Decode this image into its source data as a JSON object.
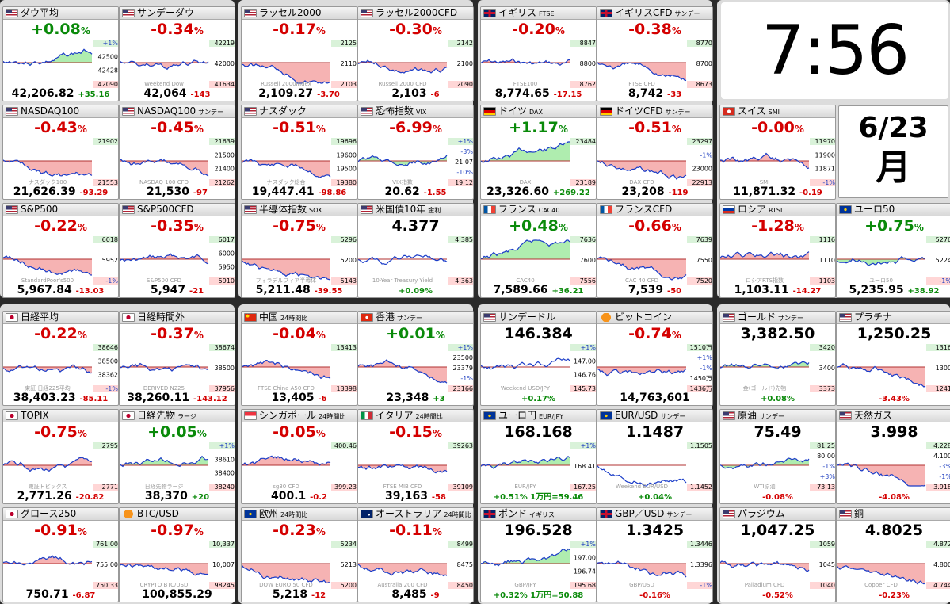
{
  "clock": {
    "time": "7:56"
  },
  "date": {
    "md": "6/23",
    "wd": "月"
  },
  "colors": {
    "up": "#0a8a0a",
    "down": "#d40000",
    "area_up": "#9be89b",
    "area_down": "#f4a0a0",
    "highlight": "#fff7a8"
  },
  "tiles": [
    {
      "name": "ダウ平均",
      "sub": "",
      "flag": "us",
      "chg": "+0.08",
      "unit": "%",
      "price": "42,206.82",
      "diff": "+35.16",
      "trend": "up",
      "badges": [
        "+1%",
        "42500",
        "42428",
        "42090"
      ],
      "wm": ""
    },
    {
      "name": "サンデーダウ",
      "sub": "",
      "flag": "us",
      "chg": "-0.34",
      "unit": "%",
      "price": "42,064",
      "diff": "-143",
      "trend": "down",
      "badges": [
        "42219",
        "42000",
        "41634"
      ],
      "wm": "Weekend Dow"
    },
    {
      "name": "ラッセル2000",
      "sub": "",
      "flag": "us",
      "chg": "-0.17",
      "unit": "%",
      "price": "2,109.27",
      "diff": "-3.70",
      "trend": "down",
      "badges": [
        "2125",
        "2110",
        "2103"
      ],
      "wm": "Russell 2000Index"
    },
    {
      "name": "ラッセル2000CFD",
      "sub": "",
      "flag": "us",
      "chg": "-0.30",
      "unit": "%",
      "price": "2,103",
      "diff": "-6",
      "trend": "down",
      "badges": [
        "2142",
        "2100",
        "2090"
      ],
      "wm": "Russell 2000 CFD"
    },
    {
      "name": "イギリス",
      "sub": "FTSE",
      "flag": "uk",
      "chg": "-0.20",
      "unit": "%",
      "price": "8,774.65",
      "diff": "-17.15",
      "trend": "down",
      "badges": [
        "8847",
        "8800",
        "8762"
      ],
      "wm": "FTSE100"
    },
    {
      "name": "イギリスCFD",
      "sub": "サンデー",
      "flag": "uk",
      "chg": "-0.38",
      "unit": "%",
      "price": "8,742",
      "diff": "-33",
      "trend": "down",
      "badges": [
        "8770",
        "8700",
        "8673"
      ],
      "wm": "FTSE CFD"
    },
    {
      "name": "NASDAQ100",
      "sub": "",
      "flag": "us",
      "chg": "-0.43",
      "unit": "%",
      "price": "21,626.39",
      "diff": "-93.29",
      "trend": "down",
      "badges": [
        "21902",
        "21553"
      ],
      "wm": "ナスダック100"
    },
    {
      "name": "NASDAQ100",
      "sub": "サンデー",
      "flag": "us",
      "chg": "-0.45",
      "unit": "%",
      "price": "21,530",
      "diff": "-97",
      "trend": "down",
      "badges": [
        "21639",
        "21500",
        "21400",
        "21262"
      ],
      "wm": "NASDAQ 100 CFD"
    },
    {
      "name": "ナスダック",
      "sub": "",
      "flag": "us",
      "chg": "-0.51",
      "unit": "%",
      "price": "19,447.41",
      "diff": "-98.86",
      "trend": "down",
      "badges": [
        "19696",
        "19600",
        "19500",
        "19380"
      ],
      "wm": "ナスダック総合"
    },
    {
      "name": "恐怖指数",
      "sub": "VIX",
      "flag": "us",
      "chg": "-6.99",
      "unit": "%",
      "price": "20.62",
      "diff": "-1.55",
      "trend": "up",
      "badges": [
        "+1%",
        "-3%",
        "21.07",
        "-10%",
        "19.12"
      ],
      "wm": "VIX指数"
    },
    {
      "name": "ドイツ",
      "sub": "DAX",
      "flag": "de",
      "chg": "+1.17",
      "unit": "%",
      "price": "23,326.60",
      "diff": "+269.22",
      "trend": "up",
      "badges": [
        "23484",
        "23189"
      ],
      "wm": "DAX"
    },
    {
      "name": "ドイツCFD",
      "sub": "サンデー",
      "flag": "de",
      "chg": "-0.51",
      "unit": "%",
      "price": "23,208",
      "diff": "-119",
      "trend": "down",
      "badges": [
        "23297",
        "-1%",
        "23000",
        "22913"
      ],
      "wm": "DAX CFD"
    },
    {
      "name": "スイス",
      "sub": "SMI",
      "flag": "ch",
      "chg": "-0.00",
      "unit": "%",
      "price": "11,871.32",
      "diff": "-0.19",
      "trend": "down",
      "badges": [
        "11970",
        "11900",
        "11871",
        "-1%"
      ],
      "wm": "SMI"
    },
    {
      "name": "S&P500",
      "sub": "",
      "flag": "us",
      "chg": "-0.22",
      "unit": "%",
      "price": "5,967.84",
      "diff": "-13.03",
      "trend": "down",
      "badges": [
        "6018",
        "5952",
        "-1%"
      ],
      "wm": "StandardPoor's500"
    },
    {
      "name": "S&P500CFD",
      "sub": "",
      "flag": "us",
      "chg": "-0.35",
      "unit": "%",
      "price": "5,947",
      "diff": "-21",
      "trend": "down",
      "badges": [
        "6017",
        "6000",
        "5950",
        "5910"
      ],
      "wm": "S&P500 CFD"
    },
    {
      "name": "半導体指数",
      "sub": "SOX",
      "flag": "us",
      "chg": "-0.75",
      "unit": "%",
      "price": "5,211.48",
      "diff": "-39.55",
      "trend": "down",
      "badges": [
        "5296",
        "5200",
        "5143"
      ],
      "wm": "フィラデルフィア半導体"
    },
    {
      "name": "米国債10年",
      "sub": "金利",
      "flag": "us",
      "chg": "4.377",
      "unit": "",
      "price": "",
      "diff": "+0.09%",
      "trend": "flat",
      "badges": [
        "4.385",
        "4.363"
      ],
      "wm": "10-Year Treasury Yield"
    },
    {
      "name": "フランス",
      "sub": "CAC40",
      "flag": "fr",
      "chg": "+0.48",
      "unit": "%",
      "price": "7,589.66",
      "diff": "+36.21",
      "trend": "up",
      "badges": [
        "7636",
        "7600",
        "7556"
      ],
      "wm": "CAC40"
    },
    {
      "name": "フランスCFD",
      "sub": "",
      "flag": "fr",
      "chg": "-0.66",
      "unit": "%",
      "price": "7,539",
      "diff": "-50",
      "trend": "down",
      "badges": [
        "7639",
        "7550",
        "7520"
      ],
      "wm": "CAC 40 CFD"
    },
    {
      "name": "ロシア",
      "sub": "RTSI",
      "flag": "ru",
      "chg": "-1.28",
      "unit": "%",
      "price": "1,103.11",
      "diff": "-14.27",
      "trend": "down",
      "badges": [
        "1116",
        "1110",
        "1103"
      ],
      "wm": "ロシアRTS指数"
    },
    {
      "name": "ユーロ50",
      "sub": "",
      "flag": "eu",
      "chg": "+0.75",
      "unit": "%",
      "price": "5,235.95",
      "diff": "+38.92",
      "trend": "up",
      "badges": [
        "5276",
        "5224",
        "-1%"
      ],
      "wm": "ユーロ50"
    },
    {
      "name": "日経平均",
      "sub": "",
      "flag": "jp",
      "chg": "-0.22",
      "unit": "%",
      "price": "38,403.23",
      "diff": "-85.11",
      "trend": "down",
      "badges": [
        "38646",
        "38500",
        "38362",
        "-1%"
      ],
      "wm": "東証 日経225平均"
    },
    {
      "name": "日経時間外",
      "sub": "",
      "flag": "jp",
      "chg": "-0.37",
      "unit": "%",
      "price": "38,260.11",
      "diff": "-143.12",
      "trend": "down",
      "badges": [
        "38674",
        "38500",
        "37956"
      ],
      "wm": "DERIVED N225"
    },
    {
      "name": "中国",
      "sub": "24時間比",
      "flag": "cn",
      "chg": "-0.04",
      "unit": "%",
      "price": "13,405",
      "diff": "-6",
      "trend": "down",
      "badges": [
        "13413",
        "13398"
      ],
      "wm": "FTSE China A50 CFD"
    },
    {
      "name": "香港",
      "sub": "サンデー",
      "flag": "hk",
      "chg": "+0.01",
      "unit": "%",
      "price": "23,348",
      "diff": "+3",
      "trend": "down",
      "badges": [
        "+1%",
        "23500",
        "23379",
        "-1%",
        "23166"
      ],
      "wm": ""
    },
    {
      "name": "サンデードル",
      "sub": "",
      "flag": "us",
      "chg": "146.384",
      "unit": "",
      "price": "",
      "diff": "+0.17%",
      "trend": "flat",
      "badges": [
        "+1%",
        "147.00",
        "146.76",
        "145.73"
      ],
      "wm": "Weekend USD/JPY"
    },
    {
      "name": "ビットコイン",
      "sub": "",
      "flag": "btc",
      "chg": "-0.74",
      "unit": "%",
      "price": "14,763,601",
      "diff": "",
      "trend": "down",
      "badges": [
        "1510万",
        "+1%",
        "-1%",
        "1450万",
        "1436万"
      ],
      "wm": ""
    },
    {
      "name": "ゴールド",
      "sub": "サンデー",
      "flag": "us",
      "chg": "3,382.50",
      "unit": "",
      "price": "",
      "diff": "+0.08%",
      "trend": "up",
      "badges": [
        "3420",
        "3400",
        "3373"
      ],
      "wm": "金(ゴールド)先物"
    },
    {
      "name": "プラチナ",
      "sub": "",
      "flag": "us",
      "chg": "1,250.25",
      "unit": "",
      "price": "",
      "diff": "-3.43%",
      "trend": "down",
      "badges": [
        "1316",
        "1300",
        "1241"
      ],
      "wm": ""
    },
    {
      "name": "TOPIX",
      "sub": "",
      "flag": "jp",
      "chg": "-0.75",
      "unit": "%",
      "price": "2,771.26",
      "diff": "-20.82",
      "trend": "down",
      "badges": [
        "2795",
        "2771"
      ],
      "wm": "東証トピックス"
    },
    {
      "name": "日経先物",
      "sub": "ラージ",
      "flag": "jp",
      "chg": "+0.05",
      "unit": "%",
      "price": "38,370",
      "diff": "+20",
      "trend": "up",
      "badges": [
        "+1%",
        "38610",
        "38400",
        "38240"
      ],
      "wm": "日経先物ラージ"
    },
    {
      "name": "シンガポール",
      "sub": "24時間比",
      "flag": "sg",
      "chg": "-0.05",
      "unit": "%",
      "price": "400.1",
      "diff": "-0.2",
      "trend": "down",
      "badges": [
        "400.46",
        "399.23"
      ],
      "wm": "sg30 CFD"
    },
    {
      "name": "イタリア",
      "sub": "24時間比",
      "flag": "it",
      "chg": "-0.15",
      "unit": "%",
      "price": "39,163",
      "diff": "-58",
      "trend": "down",
      "badges": [
        "39263",
        "39109"
      ],
      "wm": "FTSE MIB CFD"
    },
    {
      "name": "ユーロ円",
      "sub": "EUR/JPY",
      "flag": "eu",
      "chg": "168.168",
      "unit": "",
      "price": "",
      "diff": "+0.51% 1万円=59.46",
      "trend": "up",
      "badges": [
        "+1%",
        "168.41",
        "167.25"
      ],
      "wm": "EUR/JPY"
    },
    {
      "name": "EUR/USD",
      "sub": "サンデー",
      "flag": "eu",
      "chg": "1.1487",
      "unit": "",
      "price": "",
      "diff": "+0.04%",
      "trend": "flat",
      "badges": [
        "1.1505",
        "1.1452"
      ],
      "wm": "Weekend EUR/USD"
    },
    {
      "name": "原油",
      "sub": "サンデー",
      "flag": "us",
      "chg": "75.49",
      "unit": "",
      "price": "",
      "diff": "-0.08%",
      "trend": "up",
      "badges": [
        "81.25",
        "80.00",
        "-1%",
        "+3%",
        "73.13"
      ],
      "wm": "WTI原油"
    },
    {
      "name": "天然ガス",
      "sub": "",
      "flag": "us",
      "chg": "3.998",
      "unit": "",
      "price": "",
      "diff": "-4.08%",
      "trend": "down",
      "badges": [
        "4.228",
        "4.100",
        "-3%",
        "-1%",
        "3.918"
      ],
      "wm": ""
    },
    {
      "name": "グロース250",
      "sub": "",
      "flag": "jp",
      "chg": "-0.91",
      "unit": "%",
      "price": "750.71",
      "diff": "-6.87",
      "trend": "down",
      "badges": [
        "761.00",
        "755.00",
        "750.33"
      ],
      "wm": ""
    },
    {
      "name": "BTC/USD",
      "sub": "",
      "flag": "btc",
      "chg": "-0.97",
      "unit": "%",
      "price": "100,855.29",
      "diff": "",
      "trend": "down",
      "badges": [
        "10,337",
        "10,007",
        "98245"
      ],
      "wm": "CRYPTO BTC/USD"
    },
    {
      "name": "欧州",
      "sub": "24時間比",
      "flag": "eu",
      "chg": "-0.23",
      "unit": "%",
      "price": "5,218",
      "diff": "-12",
      "trend": "down",
      "badges": [
        "5234",
        "5213",
        "5200"
      ],
      "wm": "DOW EURO 50 CFD"
    },
    {
      "name": "オーストラリア",
      "sub": "24時間比",
      "flag": "au",
      "chg": "-0.11",
      "unit": "%",
      "price": "8,485",
      "diff": "-9",
      "trend": "down",
      "badges": [
        "8499",
        "8475",
        "8450"
      ],
      "wm": "Australia 200 CFD"
    },
    {
      "name": "ポンド",
      "sub": "イギリス",
      "flag": "uk",
      "chg": "196.528",
      "unit": "",
      "price": "",
      "diff": "+0.32% 1万円=50.88",
      "trend": "up",
      "badges": [
        "+1%",
        "197.00",
        "196.74",
        "195.68"
      ],
      "wm": "GBP/JPY"
    },
    {
      "name": "GBP／USD",
      "sub": "サンデー",
      "flag": "uk",
      "chg": "1.3425",
      "unit": "",
      "price": "",
      "diff": "-0.16%",
      "trend": "down",
      "badges": [
        "1.3446",
        "1.3396",
        "-1%"
      ],
      "wm": "GBP/USD"
    },
    {
      "name": "パラジウム",
      "sub": "",
      "flag": "us",
      "chg": "1,047.25",
      "unit": "",
      "price": "",
      "diff": "-0.52%",
      "trend": "down",
      "badges": [
        "1059",
        "1045",
        "1040"
      ],
      "wm": "Palladium CFD"
    },
    {
      "name": "銅",
      "sub": "",
      "flag": "us",
      "chg": "4.8025",
      "unit": "",
      "price": "",
      "diff": "-0.23%",
      "trend": "down",
      "badges": [
        "4.872",
        "4.800",
        "4.744"
      ],
      "wm": "Copper CFD"
    }
  ]
}
